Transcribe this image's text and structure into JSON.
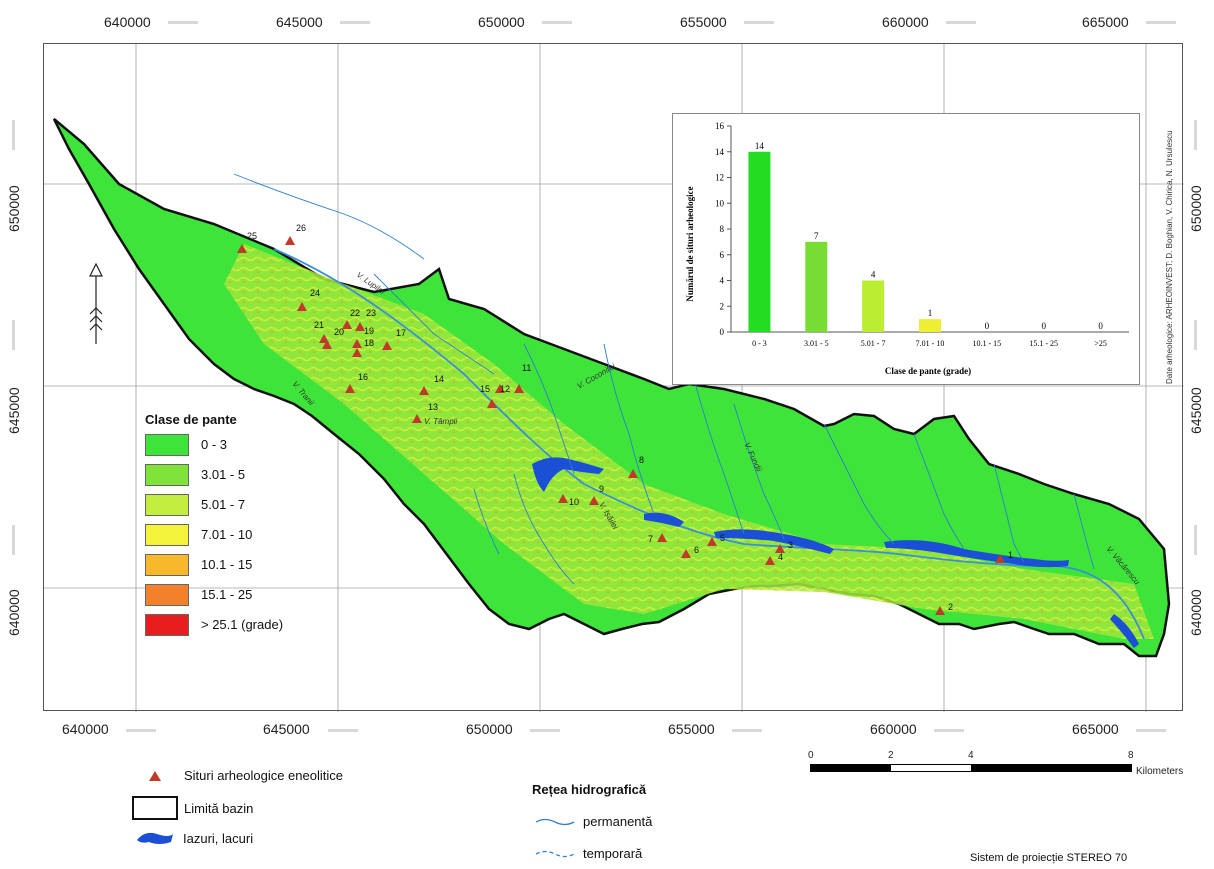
{
  "coords": {
    "x_top": [
      "640000",
      "645000",
      "650000",
      "655000",
      "660000",
      "665000"
    ],
    "x_bottom": [
      "640000",
      "645000",
      "650000",
      "655000",
      "660000",
      "665000"
    ],
    "y_left": [
      "650000",
      "645000",
      "640000"
    ],
    "y_right": [
      "650000",
      "645000",
      "640000"
    ]
  },
  "legend": {
    "title": "Clase de pante",
    "classes": [
      {
        "label": "0 - 3",
        "color": "#3ee43a"
      },
      {
        "label": "3.01 - 5",
        "color": "#7fe33a"
      },
      {
        "label": "5.01 - 7",
        "color": "#c2ef3f"
      },
      {
        "label": "7.01 - 10",
        "color": "#f3f33a"
      },
      {
        "label": "10.1 - 15",
        "color": "#f7b92b"
      },
      {
        "label": "15.1 - 25",
        "color": "#f3812b"
      },
      {
        "label": "> 25.1 (grade)",
        "color": "#e81e1e"
      }
    ]
  },
  "chart_data": {
    "type": "bar",
    "categories": [
      "0 - 3",
      "3.01 - 5",
      "5.01 - 7",
      "7.01 - 10",
      "10.1 - 15",
      "15.1 - 25",
      ">25"
    ],
    "values": [
      14,
      7,
      4,
      1,
      0,
      0,
      0
    ],
    "bar_colors": [
      "#22dd22",
      "#77dd33",
      "#bbee33",
      "#eeee33",
      "#f7b92b",
      "#f3812b",
      "#e81e1e"
    ],
    "xlabel": "Clase de pante (grade)",
    "ylabel": "Numărul de situri arheologice",
    "ylim": [
      0,
      16
    ],
    "yticks": [
      "0",
      "2",
      "4",
      "6",
      "8",
      "10",
      "12",
      "14",
      "16"
    ],
    "grid": false
  },
  "sites": [
    "1",
    "2",
    "3",
    "4",
    "5",
    "6",
    "7",
    "8",
    "9",
    "10",
    "11",
    "12",
    "13",
    "14",
    "15",
    "16",
    "17",
    "18",
    "19",
    "20",
    "21",
    "22",
    "23",
    "24",
    "25",
    "26"
  ],
  "rivers": [
    "V. Lupilor",
    "V. Tranii",
    "V. Coconitei",
    "V. Tâmpii",
    "V. Ișăilei",
    "V. Fundii",
    "V. Văcărescu"
  ],
  "credit": "Date arheologice: ARHEOINVEST; D. Boghian, V. Chirica, N. Ursulescu",
  "bottom_legend": {
    "sites_label": "Situri arheologice eneolitice",
    "basin_label": "Limită bazin",
    "lakes_label": "Iazuri, lacuri",
    "hydro_title": "Rețea hidrografică",
    "permanent_label": "permanentă",
    "temporary_label": "temporară"
  },
  "scale": {
    "ticks": [
      "0",
      "2",
      "4",
      "8"
    ],
    "unit": "Kilometers"
  },
  "projection": "Sistem de proiecție STEREO 70"
}
